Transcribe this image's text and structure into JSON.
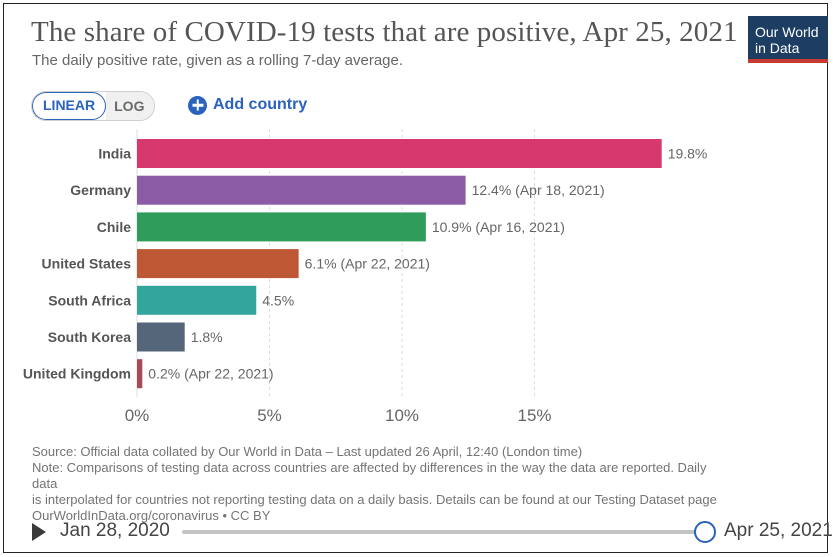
{
  "header": {
    "title": "The share of COVID-19 tests that are positive, Apr 25, 2021",
    "subtitle": "The daily positive rate, given as a rolling 7-day average.",
    "logo_line1": "Our World",
    "logo_line2": "in Data"
  },
  "controls": {
    "linear_label": "LINEAR",
    "log_label": "LOG",
    "add_country_label": "Add country"
  },
  "chart_data": {
    "type": "bar",
    "orientation": "horizontal",
    "title": "The share of COVID-19 tests that are positive, Apr 25, 2021",
    "categories": [
      "India",
      "Germany",
      "Chile",
      "United States",
      "South Africa",
      "South Korea",
      "United Kingdom"
    ],
    "values": [
      19.8,
      12.4,
      10.9,
      6.1,
      4.5,
      1.8,
      0.2
    ],
    "value_labels": [
      "19.8%",
      "12.4% (Apr 18, 2021)",
      "10.9% (Apr 16, 2021)",
      "6.1% (Apr 22, 2021)",
      "4.5%",
      "1.8%",
      "0.2% (Apr 22, 2021)"
    ],
    "colors": [
      "#d7396f",
      "#8c5ba6",
      "#2f9c5c",
      "#be5734",
      "#34a59d",
      "#55657a",
      "#a84b55"
    ],
    "xlim": [
      0,
      20
    ],
    "ticks": [
      0,
      5,
      10,
      15
    ],
    "tick_labels": [
      "0%",
      "5%",
      "10%",
      "15%"
    ],
    "grid": true,
    "gridline_color": "#dddddd"
  },
  "footer": {
    "source": "Source: Official data collated by Our World in Data – Last updated 26 April, 12:40 (London time)",
    "note1": "Note: Comparisons of testing data across countries are affected by differences in the way the data are reported. Daily",
    "note2": "data",
    "note3": "is interpolated for countries not reporting testing data on a daily basis. Details can be found at our Testing Dataset page",
    "link": "OurWorldInData.org/coronavirus • CC BY"
  },
  "timeline": {
    "start_label": "Jan 28, 2020",
    "end_label": "Apr 25, 2021"
  }
}
